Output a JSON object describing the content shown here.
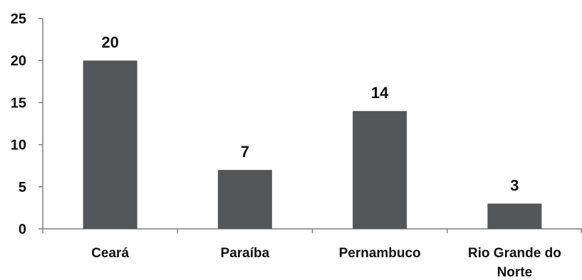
{
  "chart_data": {
    "type": "bar",
    "categories": [
      "Ceará",
      "Paraíba",
      "Pernambuco",
      "Rio Grande do Norte"
    ],
    "category_lines": [
      [
        "Ceará"
      ],
      [
        "Paraíba"
      ],
      [
        "Pernambuco"
      ],
      [
        "Rio Grande do",
        "Norte"
      ]
    ],
    "values": [
      20,
      7,
      14,
      3
    ],
    "data_labels": [
      "20",
      "7",
      "14",
      "3"
    ],
    "y_ticks": [
      0,
      5,
      10,
      15,
      20,
      25
    ],
    "y_tick_labels": [
      "0",
      "5",
      "10",
      "15",
      "20",
      "25"
    ],
    "ylim": [
      0,
      25
    ],
    "title": "",
    "xlabel": "",
    "ylabel": "",
    "grid": false,
    "legend": "none",
    "bar_color": "#54575a",
    "axis_color": "#7f7f7f"
  }
}
